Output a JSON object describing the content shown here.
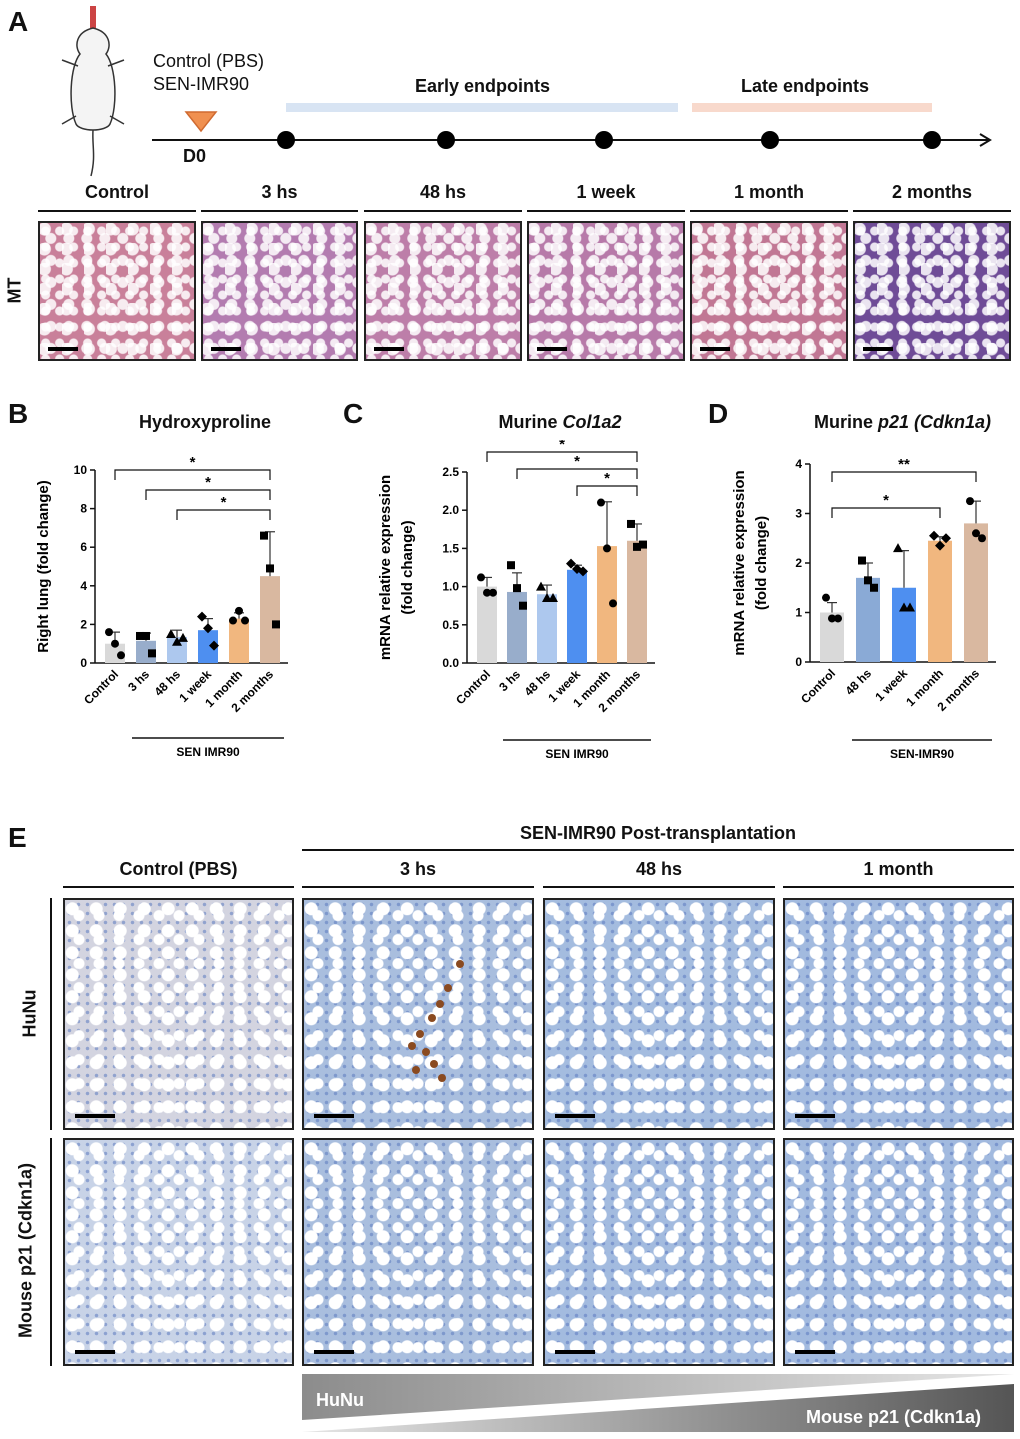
{
  "panelA": {
    "label": "A",
    "treatment_line1": "Control (PBS)",
    "treatment_line2": "SEN-IMR90",
    "day0": "D0",
    "early": "Early endpoints",
    "late": "Late endpoints",
    "row_label": "MT",
    "columns": [
      "Control",
      "3 hs",
      "48 hs",
      "1 week",
      "1 month",
      "2 months"
    ],
    "colors": {
      "early_band": "#d8e4f3",
      "late_band": "#f8d9cc",
      "marker": "#f09050"
    }
  },
  "panelB": {
    "label": "B",
    "group_label": "SEN IMR90",
    "chart_data": {
      "type": "bar",
      "title": "Hydroxyproline",
      "ylabel": "Right lung (fold change)",
      "categories": [
        "Control",
        "3 hs",
        "48 hs",
        "1 week",
        "1 month",
        "2 months"
      ],
      "values": [
        1.0,
        1.15,
        1.35,
        1.7,
        2.3,
        4.5
      ],
      "errors": [
        0.6,
        0.4,
        0.35,
        0.6,
        0.3,
        2.3
      ],
      "points": [
        [
          1.6,
          1.0,
          0.4
        ],
        [
          1.4,
          1.4,
          0.5
        ],
        [
          1.5,
          1.1,
          1.3
        ],
        [
          2.4,
          1.8,
          0.9
        ],
        [
          2.2,
          2.7,
          2.2
        ],
        [
          6.6,
          4.9,
          2.0
        ]
      ],
      "ylim": [
        0,
        10
      ],
      "yticks": [
        0,
        2,
        4,
        6,
        8,
        10
      ],
      "colors": [
        "#d9d9d9",
        "#98adcb",
        "#adc8ee",
        "#4e8ff0",
        "#f1b77f",
        "#d9b8a0"
      ],
      "significance": [
        {
          "from": "Control",
          "to": "2 months",
          "label": "*"
        },
        {
          "from": "3 hs",
          "to": "2 months",
          "label": "*"
        },
        {
          "from": "48 hs",
          "to": "2 months",
          "label": "*"
        }
      ]
    }
  },
  "panelC": {
    "label": "C",
    "title_prefix": "Murine ",
    "title_italic": "Col1a2",
    "group_label": "SEN IMR90",
    "chart_data": {
      "type": "bar",
      "title": "Murine Col1a2",
      "ylabel": "mRNA relative expression (fold change)",
      "ylabel_line1": "mRNA relative expression",
      "ylabel_line2": "(fold change)",
      "categories": [
        "Control",
        "3 hs",
        "48 hs",
        "1 week",
        "1 month",
        "2 months"
      ],
      "values": [
        1.0,
        0.93,
        0.9,
        1.22,
        1.53,
        1.6
      ],
      "errors": [
        0.12,
        0.25,
        0.12,
        0.06,
        0.58,
        0.22
      ],
      "points": [
        [
          1.12,
          0.92,
          0.92
        ],
        [
          1.28,
          0.98,
          0.75
        ],
        [
          1.0,
          0.85,
          0.85
        ],
        [
          1.3,
          1.23,
          1.2
        ],
        [
          2.1,
          1.5,
          0.78
        ],
        [
          1.82,
          1.52,
          1.55
        ]
      ],
      "ylim": [
        0,
        2.5
      ],
      "yticks": [
        0.0,
        0.5,
        1.0,
        1.5,
        2.0,
        2.5
      ],
      "colors": [
        "#d9d9d9",
        "#98adcb",
        "#adc8ee",
        "#4e8ff0",
        "#f1b77f",
        "#d9b8a0"
      ],
      "significance": [
        {
          "from": "Control",
          "to": "2 months",
          "label": "*"
        },
        {
          "from": "3 hs",
          "to": "2 months",
          "label": "*"
        },
        {
          "from": "1 week",
          "to": "2 months",
          "label": "*"
        }
      ]
    }
  },
  "panelD": {
    "label": "D",
    "title_prefix": "Murine ",
    "title_italic": "p21 (Cdkn1a)",
    "group_label": "SEN-IMR90",
    "chart_data": {
      "type": "bar",
      "title": "Murine p21 (Cdkn1a)",
      "ylabel": "mRNA relative expression (fold change)",
      "ylabel_line1": "mRNA relative expression",
      "ylabel_line2": "(fold change)",
      "categories": [
        "Control",
        "48 hs",
        "1 week",
        "1 month",
        "2 months"
      ],
      "values": [
        1.0,
        1.7,
        1.5,
        2.45,
        2.8
      ],
      "errors": [
        0.2,
        0.3,
        0.75,
        0.08,
        0.45
      ],
      "points": [
        [
          1.3,
          0.88,
          0.88
        ],
        [
          2.05,
          1.65,
          1.5
        ],
        [
          2.3,
          1.1,
          1.1
        ],
        [
          2.55,
          2.35,
          2.5
        ],
        [
          3.25,
          2.6,
          2.5
        ]
      ],
      "ylim": [
        0,
        4
      ],
      "yticks": [
        0,
        1,
        2,
        3,
        4
      ],
      "colors": [
        "#d9d9d9",
        "#8aaad6",
        "#4e8ff0",
        "#f1b77f",
        "#d9b8a0"
      ],
      "significance": [
        {
          "from": "Control",
          "to": "2 months",
          "label": "**"
        },
        {
          "from": "Control",
          "to": "1 month",
          "label": "*"
        }
      ]
    }
  },
  "panelE": {
    "label": "E",
    "header": "SEN-IMR90 Post-transplantation",
    "columns": [
      "Control (PBS)",
      "3 hs",
      "48 hs",
      "1 month"
    ],
    "rows": [
      "HuNu",
      "Mouse p21 (Cdkn1a)"
    ],
    "gradient_left": "HuNu",
    "gradient_right": "Mouse p21 (Cdkn1a)"
  }
}
